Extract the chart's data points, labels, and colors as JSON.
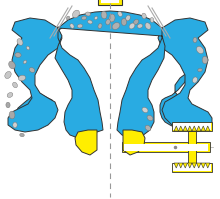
{
  "bg_color": "#ffffff",
  "blue": "#29abe2",
  "blue_dark": "#1a8fbf",
  "yellow": "#ffee00",
  "gray_light": "#c8c8c8",
  "gray_med": "#aaaaaa",
  "white": "#ffffff",
  "black": "#333333",
  "fig_width": 2.2,
  "fig_height": 1.99,
  "dpi": 100
}
